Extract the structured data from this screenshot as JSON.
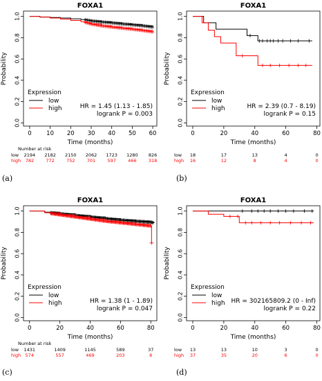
{
  "colors": {
    "low": "#000000",
    "high": "#ff0000"
  },
  "chart_data": [
    {
      "type": "line",
      "panel_label": "(a)",
      "title": "FOXA1",
      "xlabel": "Time (months)",
      "ylabel": "Probability",
      "xlim": [
        -3,
        62
      ],
      "ylim": [
        -0.03,
        1.05
      ],
      "xticks": [
        "0",
        "10",
        "20",
        "30",
        "40",
        "50",
        "60"
      ],
      "yticks": [
        "0.0",
        "0.2",
        "0.4",
        "0.6",
        "0.8",
        "1.0"
      ],
      "xtick_values": [
        0,
        10,
        20,
        30,
        40,
        50,
        60
      ],
      "ytick_values": [
        0,
        0.2,
        0.4,
        0.6,
        0.8,
        1.0
      ],
      "legend": {
        "title": "Expression",
        "position": "bottom-left"
      },
      "stats": [
        "HR = 1.45 (1.13 - 1.85)",
        "logrank P = 0.003"
      ],
      "series": [
        {
          "name": "low",
          "color": "#000000",
          "x": [
            0,
            5,
            10,
            15,
            20,
            25,
            28,
            30,
            35,
            40,
            45,
            50,
            55,
            60
          ],
          "y": [
            1.0,
            0.995,
            0.99,
            0.985,
            0.978,
            0.97,
            0.965,
            0.958,
            0.948,
            0.94,
            0.93,
            0.922,
            0.912,
            0.9
          ],
          "censor_from": 27
        },
        {
          "name": "high",
          "color": "#ff0000",
          "x": [
            0,
            5,
            10,
            15,
            20,
            25,
            28,
            30,
            35,
            40,
            45,
            50,
            55,
            60
          ],
          "y": [
            1.0,
            0.993,
            0.985,
            0.975,
            0.962,
            0.95,
            0.94,
            0.928,
            0.912,
            0.9,
            0.89,
            0.88,
            0.868,
            0.855
          ],
          "censor_from": 27
        }
      ],
      "risk_table": {
        "header": "Number at risk",
        "times": [
          0,
          10,
          20,
          30,
          40,
          50,
          60
        ],
        "rows": [
          {
            "label": "low",
            "color": "#000000",
            "values": [
              "2194",
              "2182",
              "2150",
              "2062",
              "1723",
              "1280",
              "826"
            ]
          },
          {
            "label": "high",
            "color": "#ff0000",
            "values": [
              "782",
              "772",
              "752",
              "701",
              "597",
              "466",
              "318"
            ]
          }
        ]
      }
    },
    {
      "type": "line",
      "panel_label": "(b)",
      "title": "FOXA1",
      "xlabel": "Time (months)",
      "ylabel": "Probability",
      "xlim": [
        -4,
        82
      ],
      "ylim": [
        -0.03,
        1.05
      ],
      "xticks": [
        "0",
        "20",
        "40",
        "60",
        "80"
      ],
      "yticks": [
        "0.0",
        "0.2",
        "0.4",
        "0.6",
        "0.8",
        "1.0"
      ],
      "xtick_values": [
        0,
        20,
        40,
        60,
        80
      ],
      "ytick_values": [
        0,
        0.2,
        0.4,
        0.6,
        0.8,
        1.0
      ],
      "legend": {
        "title": "Expression",
        "position": "bottom-left"
      },
      "stats": [
        "HR = 2.39 (0.7 - 8.19)",
        "logrank P = 0.15"
      ],
      "series": [
        {
          "name": "low",
          "color": "#000000",
          "x": [
            0,
            7,
            15,
            35,
            42,
            77
          ],
          "y": [
            1.0,
            0.94,
            0.88,
            0.82,
            0.77,
            0.77
          ],
          "censor": [
            [
              37,
              0.82
            ],
            [
              43,
              0.77
            ],
            [
              45,
              0.77
            ],
            [
              48,
              0.77
            ],
            [
              50,
              0.77
            ],
            [
              52,
              0.77
            ],
            [
              55,
              0.77
            ],
            [
              58,
              0.77
            ],
            [
              63,
              0.77
            ],
            [
              68,
              0.77
            ],
            [
              75,
              0.77
            ]
          ]
        },
        {
          "name": "high",
          "color": "#ff0000",
          "x": [
            0,
            6,
            10,
            14,
            18,
            28,
            42,
            77
          ],
          "y": [
            1.0,
            0.94,
            0.87,
            0.81,
            0.75,
            0.63,
            0.54,
            0.54
          ],
          "censor": [
            [
              32,
              0.63
            ],
            [
              45,
              0.54
            ],
            [
              50,
              0.54
            ],
            [
              56,
              0.54
            ],
            [
              62,
              0.54
            ],
            [
              68,
              0.54
            ],
            [
              73,
              0.54
            ]
          ]
        }
      ],
      "risk_table": {
        "header": "",
        "times": [
          0,
          20,
          40,
          60,
          80
        ],
        "rows": [
          {
            "label": "low",
            "color": "#000000",
            "values": [
              "18",
              "17",
              "13",
              "4",
              "0"
            ]
          },
          {
            "label": "high",
            "color": "#ff0000",
            "values": [
              "16",
              "12",
              "8",
              "4",
              "0"
            ]
          }
        ]
      }
    },
    {
      "type": "line",
      "panel_label": "(c)",
      "title": "FOXA1",
      "xlabel": "Time (months)",
      "ylabel": "Probability",
      "xlim": [
        -4,
        84
      ],
      "ylim": [
        -0.03,
        1.05
      ],
      "xticks": [
        "0",
        "20",
        "40",
        "60",
        "80"
      ],
      "yticks": [
        "0.0",
        "0.2",
        "0.4",
        "0.6",
        "0.8",
        "1.0"
      ],
      "xtick_values": [
        0,
        20,
        40,
        60,
        80
      ],
      "ytick_values": [
        0,
        0.2,
        0.4,
        0.6,
        0.8,
        1.0
      ],
      "legend": {
        "title": "Expression",
        "position": "bottom-left"
      },
      "stats": [
        "HR = 1.38 (1 - 1.89)",
        "logrank P = 0.047"
      ],
      "series": [
        {
          "name": "low",
          "color": "#000000",
          "x": [
            0,
            10,
            20,
            30,
            40,
            50,
            60,
            70,
            80,
            82
          ],
          "y": [
            1.0,
            0.99,
            0.975,
            0.96,
            0.945,
            0.93,
            0.915,
            0.905,
            0.895,
            0.89
          ],
          "censor_from": 14
        },
        {
          "name": "high",
          "color": "#ff0000",
          "x": [
            0,
            10,
            20,
            30,
            40,
            50,
            60,
            70,
            80,
            80.5
          ],
          "y": [
            1.0,
            0.985,
            0.965,
            0.945,
            0.925,
            0.905,
            0.89,
            0.875,
            0.86,
            0.7
          ],
          "censor_from": 14
        }
      ],
      "risk_table": {
        "header": "Number at risk",
        "times": [
          0,
          20,
          40,
          60,
          80
        ],
        "rows": [
          {
            "label": "low",
            "color": "#000000",
            "values": [
              "1431",
              "1409",
              "1145",
              "589",
              "37"
            ]
          },
          {
            "label": "high",
            "color": "#ff0000",
            "values": [
              "574",
              "557",
              "469",
              "203",
              "8"
            ]
          }
        ]
      }
    },
    {
      "type": "line",
      "panel_label": "(d)",
      "title": "FOXA1",
      "xlabel": "Time (months)",
      "ylabel": "Probability",
      "xlim": [
        -4,
        82
      ],
      "ylim": [
        -0.03,
        1.05
      ],
      "xticks": [
        "0",
        "20",
        "40",
        "60",
        "80"
      ],
      "yticks": [
        "0.0",
        "0.2",
        "0.4",
        "0.6",
        "0.8",
        "1.0"
      ],
      "xtick_values": [
        0,
        20,
        40,
        60,
        80
      ],
      "ytick_values": [
        0,
        0.2,
        0.4,
        0.6,
        0.8,
        1.0
      ],
      "legend": {
        "title": "Expression",
        "position": "bottom-left"
      },
      "stats": [
        "HR = 302165809.2 (0 - Inf)",
        "logrank P = 0.22"
      ],
      "series": [
        {
          "name": "low",
          "color": "#000000",
          "x": [
            0,
            78
          ],
          "y": [
            1.0,
            1.0
          ],
          "censor": [
            [
              32,
              1.0
            ],
            [
              38,
              1.0
            ],
            [
              42,
              1.0
            ],
            [
              46,
              1.0
            ],
            [
              50,
              1.0
            ],
            [
              55,
              1.0
            ],
            [
              60,
              1.0
            ],
            [
              65,
              1.0
            ],
            [
              72,
              1.0
            ],
            [
              77,
              1.0
            ]
          ]
        },
        {
          "name": "high",
          "color": "#ff0000",
          "x": [
            0,
            10,
            20,
            30,
            78
          ],
          "y": [
            1.0,
            0.97,
            0.95,
            0.89,
            0.89
          ],
          "censor": [
            [
              24,
              0.95
            ],
            [
              29,
              0.95
            ],
            [
              34,
              0.89
            ],
            [
              38,
              0.89
            ],
            [
              44,
              0.89
            ],
            [
              50,
              0.89
            ],
            [
              56,
              0.89
            ],
            [
              63,
              0.89
            ],
            [
              70,
              0.89
            ],
            [
              76,
              0.89
            ]
          ]
        }
      ],
      "risk_table": {
        "header": "",
        "times": [
          0,
          20,
          40,
          60,
          80
        ],
        "rows": [
          {
            "label": "low",
            "color": "#000000",
            "values": [
              "13",
              "13",
              "10",
              "3",
              "0"
            ]
          },
          {
            "label": "high",
            "color": "#ff0000",
            "values": [
              "37",
              "35",
              "20",
              "6",
              "0"
            ]
          }
        ]
      }
    }
  ]
}
